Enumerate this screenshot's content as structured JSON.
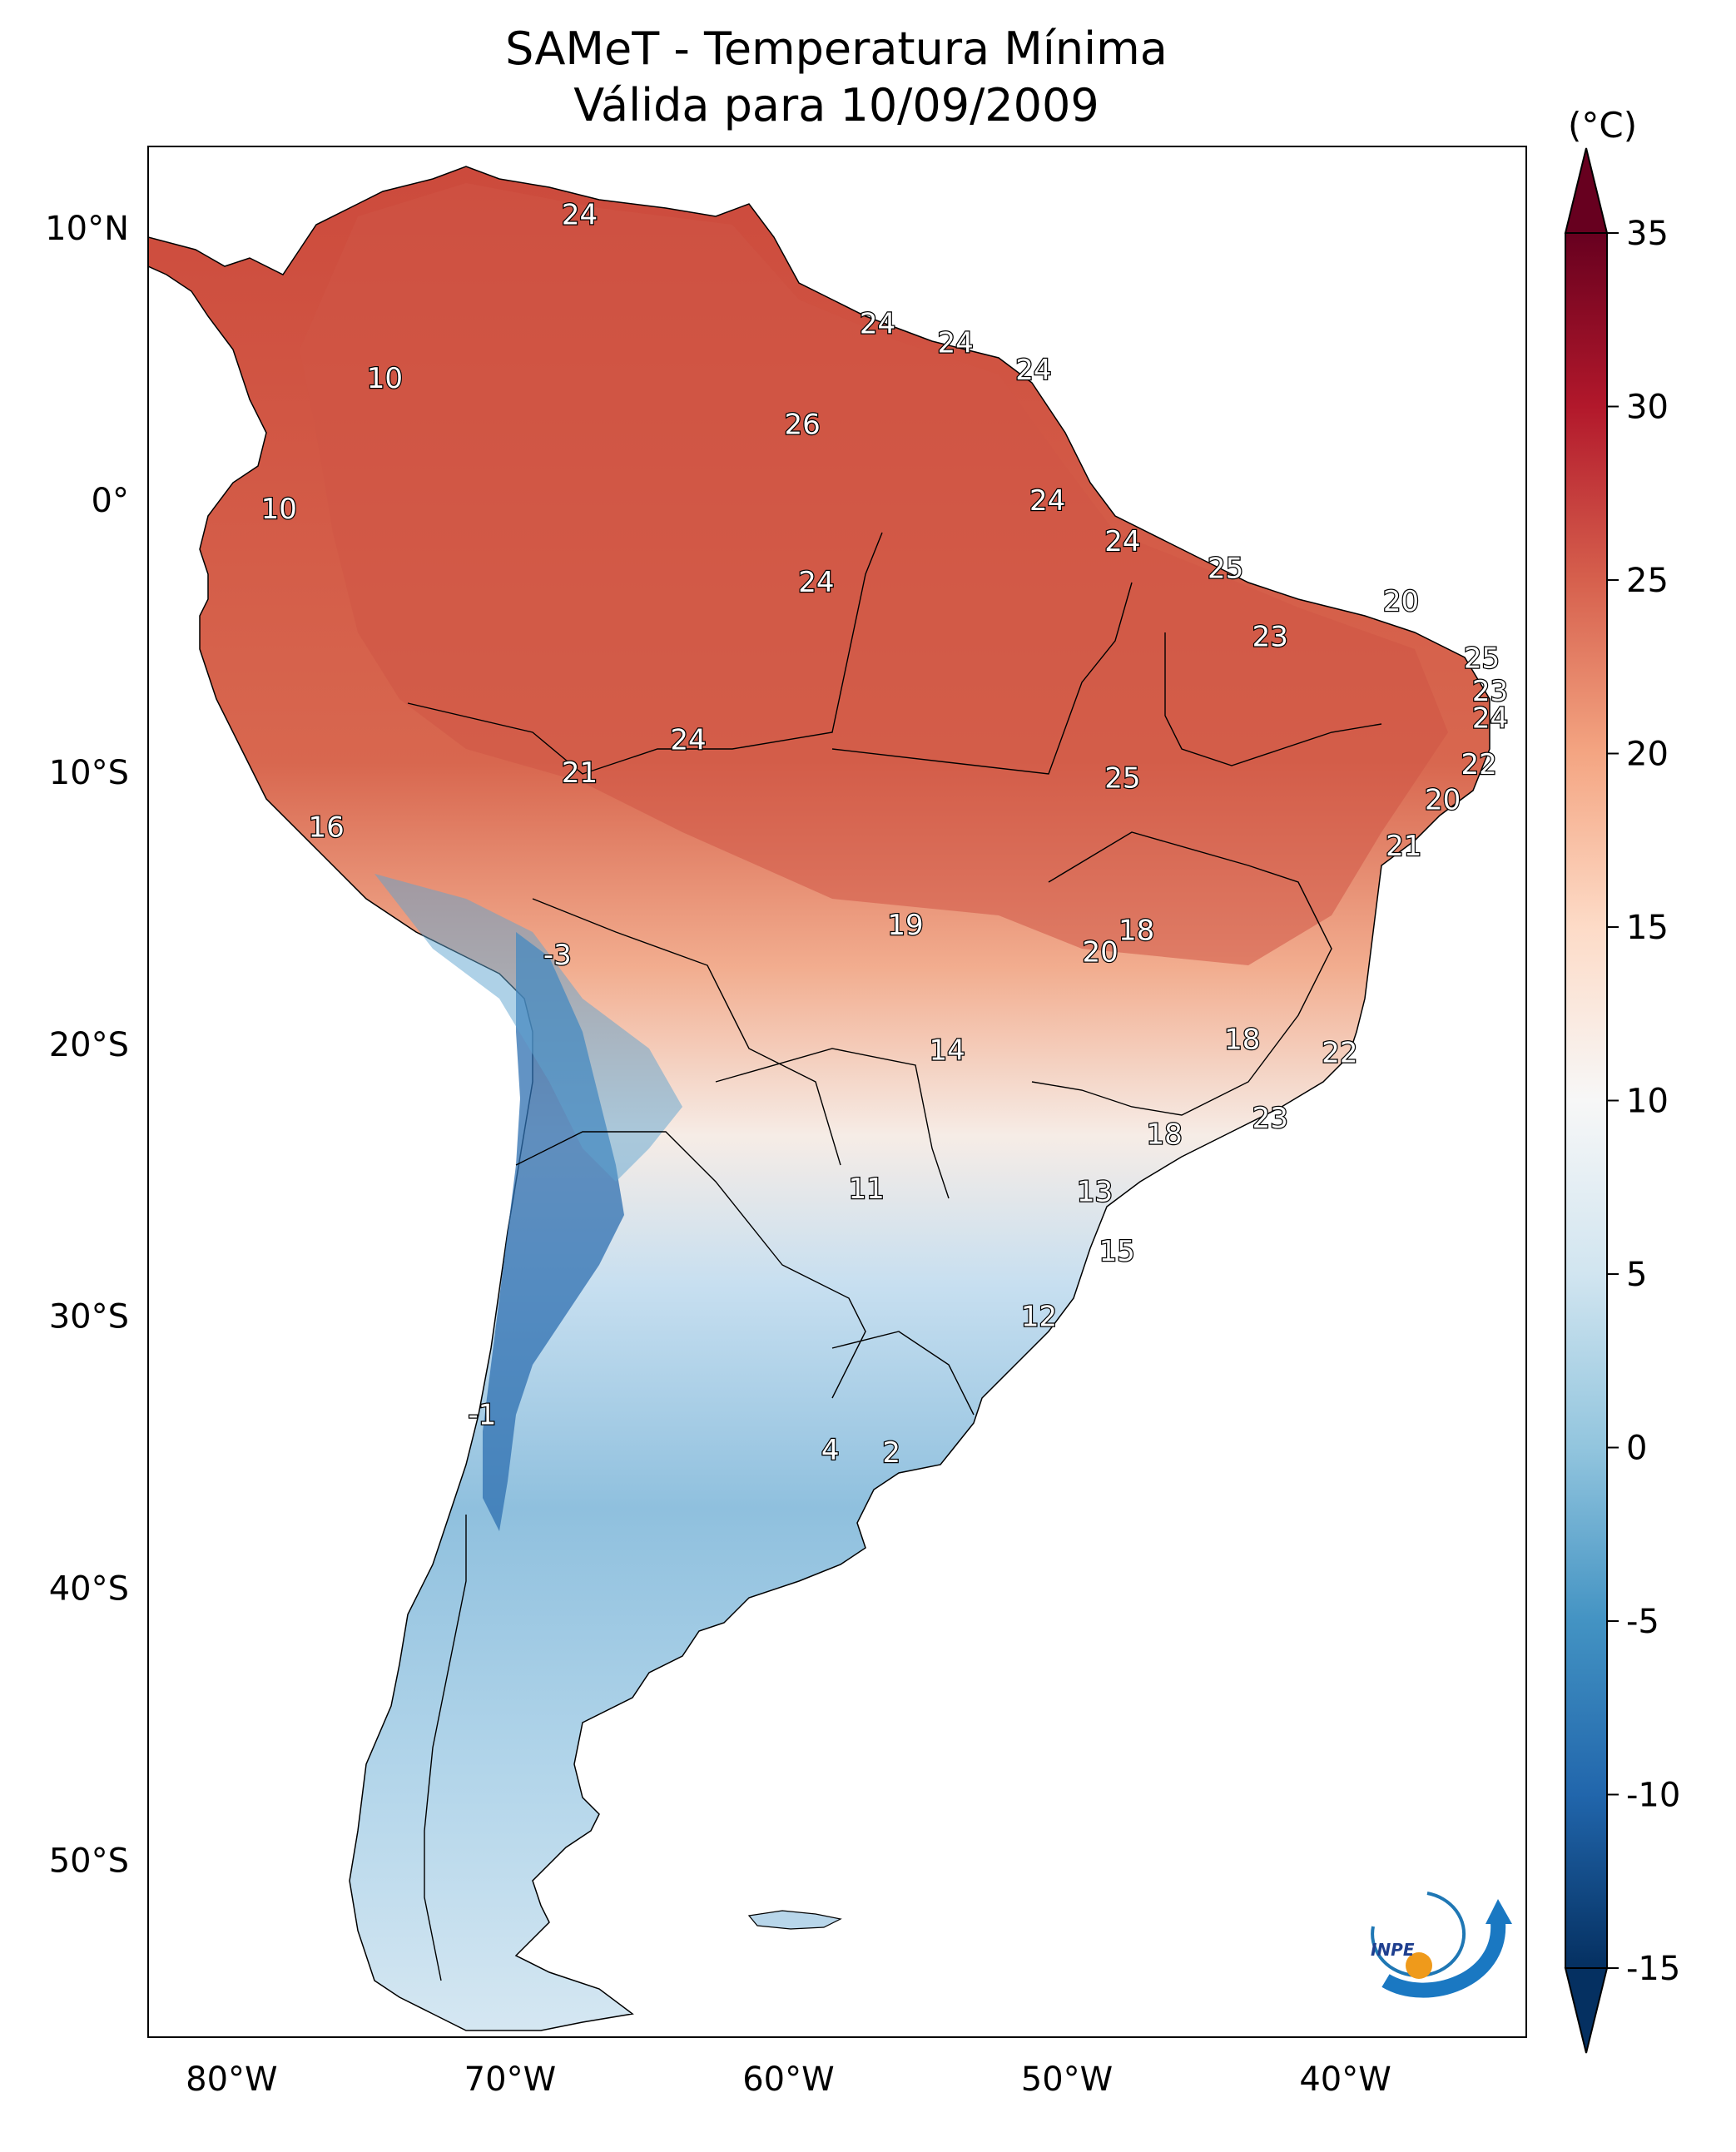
{
  "title": {
    "line1": "SAMeT - Temperatura Mínima",
    "line2": "Válida para 10/09/2009"
  },
  "map": {
    "lat_labels": [
      "10°N",
      "0°",
      "10°S",
      "20°S",
      "30°S",
      "40°S",
      "50°S"
    ],
    "lon_labels": [
      "80°W",
      "70°W",
      "60°W",
      "50°W",
      "40°W"
    ],
    "lat_values": [
      10,
      0,
      -10,
      -20,
      -30,
      -40,
      -50
    ],
    "lon_values": [
      -80,
      -70,
      -60,
      -50,
      -40
    ],
    "extent": {
      "lon": [
        -83,
        -33.5
      ],
      "lat": [
        -56.5,
        13
      ]
    },
    "annotations": [
      {
        "text": "24",
        "lon": -67.5,
        "lat": 10.5
      },
      {
        "text": "10",
        "lon": -74.5,
        "lat": 4.5
      },
      {
        "text": "10",
        "lon": -78.3,
        "lat": -0.3
      },
      {
        "text": "24",
        "lon": -56.8,
        "lat": 6.5
      },
      {
        "text": "24",
        "lon": -54.0,
        "lat": 5.8
      },
      {
        "text": "24",
        "lon": -51.2,
        "lat": 4.8
      },
      {
        "text": "26",
        "lon": -59.5,
        "lat": 2.8
      },
      {
        "text": "24",
        "lon": -50.7,
        "lat": 0.0
      },
      {
        "text": "24",
        "lon": -48.0,
        "lat": -1.5
      },
      {
        "text": "25",
        "lon": -44.3,
        "lat": -2.5
      },
      {
        "text": "24",
        "lon": -59.0,
        "lat": -3.0
      },
      {
        "text": "20",
        "lon": -38.0,
        "lat": -3.7
      },
      {
        "text": "23",
        "lon": -42.7,
        "lat": -5.0
      },
      {
        "text": "25",
        "lon": -35.1,
        "lat": -5.8
      },
      {
        "text": "23",
        "lon": -34.8,
        "lat": -7.0
      },
      {
        "text": "24",
        "lon": -34.8,
        "lat": -8.0
      },
      {
        "text": "24",
        "lon": -63.6,
        "lat": -8.8
      },
      {
        "text": "22",
        "lon": -35.2,
        "lat": -9.7
      },
      {
        "text": "21",
        "lon": -67.5,
        "lat": -10.0
      },
      {
        "text": "25",
        "lon": -48.0,
        "lat": -10.2
      },
      {
        "text": "20",
        "lon": -36.5,
        "lat": -11.0
      },
      {
        "text": "16",
        "lon": -76.6,
        "lat": -12.0
      },
      {
        "text": "21",
        "lon": -37.9,
        "lat": -12.7
      },
      {
        "text": "18",
        "lon": -47.5,
        "lat": -15.8
      },
      {
        "text": "19",
        "lon": -55.8,
        "lat": -15.6
      },
      {
        "text": "-3",
        "lon": -68.3,
        "lat": -16.7
      },
      {
        "text": "20",
        "lon": -48.8,
        "lat": -16.6
      },
      {
        "text": "18",
        "lon": -43.7,
        "lat": -19.8
      },
      {
        "text": "14",
        "lon": -54.3,
        "lat": -20.2
      },
      {
        "text": "22",
        "lon": -40.2,
        "lat": -20.3
      },
      {
        "text": "23",
        "lon": -42.7,
        "lat": -22.7
      },
      {
        "text": "18",
        "lon": -46.5,
        "lat": -23.3
      },
      {
        "text": "11",
        "lon": -57.2,
        "lat": -25.3
      },
      {
        "text": "13",
        "lon": -49.0,
        "lat": -25.4
      },
      {
        "text": "15",
        "lon": -48.2,
        "lat": -27.6
      },
      {
        "text": "12",
        "lon": -51.0,
        "lat": -30.0
      },
      {
        "text": "-1",
        "lon": -71.0,
        "lat": -33.6
      },
      {
        "text": "4",
        "lon": -58.5,
        "lat": -34.9
      },
      {
        "text": "2",
        "lon": -56.3,
        "lat": -35.0
      }
    ]
  },
  "colorbar": {
    "unit": "(°C)",
    "ticks": [
      "35",
      "30",
      "25",
      "20",
      "15",
      "10",
      "5",
      "0",
      "-5",
      "-10",
      "-15"
    ],
    "tick_values": [
      35,
      30,
      25,
      20,
      15,
      10,
      5,
      0,
      -5,
      -10,
      -15
    ],
    "range": [
      -15,
      35
    ],
    "colormap": "RdBu_r"
  },
  "colors": {
    "hot": "#a51f2c",
    "warm": "#d6604d",
    "mild": "#f4a582",
    "neutral": "#f7f7f7",
    "cool": "#92c5de",
    "cold": "#4393c3",
    "coldest": "#08306b"
  },
  "logo": {
    "text": "INPE",
    "icon": "inpe-logo-icon"
  }
}
